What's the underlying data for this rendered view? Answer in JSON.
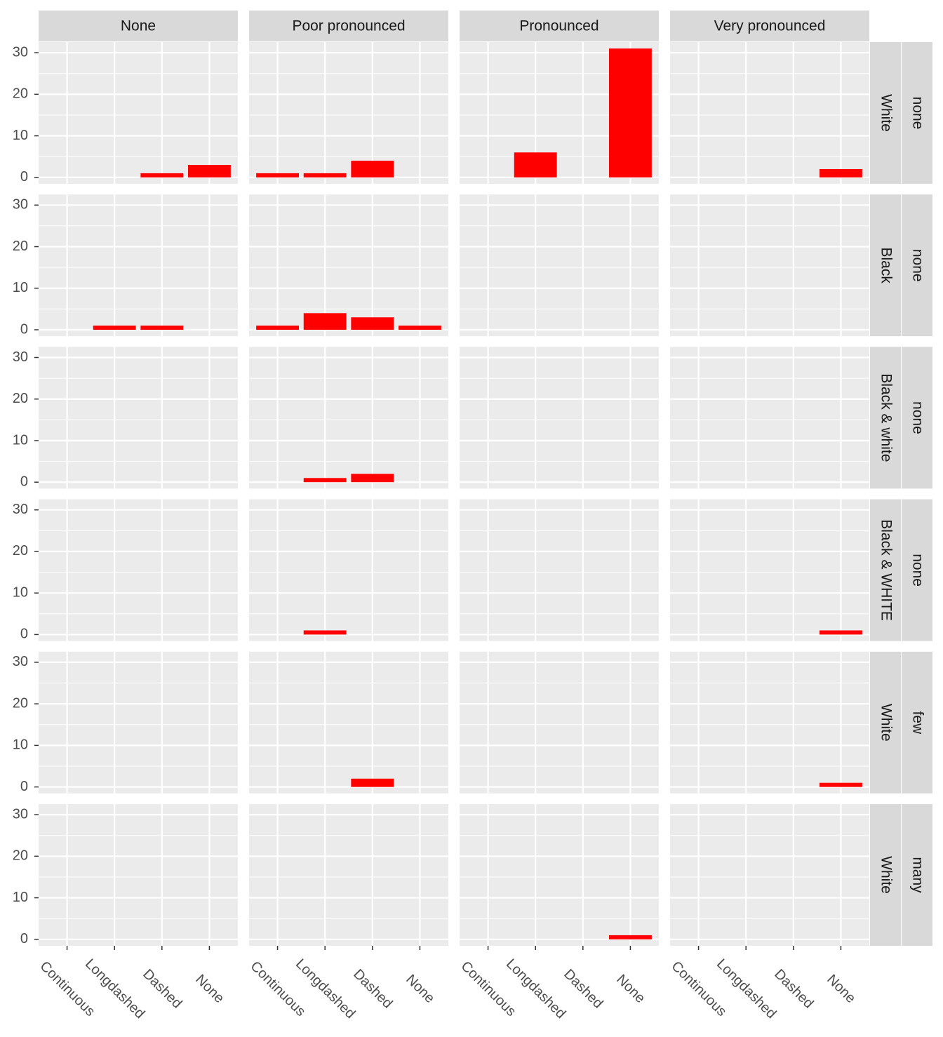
{
  "chart_data": {
    "type": "bar",
    "column_facets": [
      "None",
      "Poor pronounced",
      "Pronounced",
      "Very pronounced"
    ],
    "row_facets": [
      [
        "White",
        "none"
      ],
      [
        "Black",
        "none"
      ],
      [
        "Black & white",
        "none"
      ],
      [
        "Black & WHITE",
        "none"
      ],
      [
        "White",
        "few"
      ],
      [
        "White",
        "many"
      ]
    ],
    "categories": [
      "Continuous",
      "Longdashed",
      "Dashed",
      "None"
    ],
    "values": [
      [
        [
          null,
          null,
          1,
          3
        ],
        [
          1,
          1,
          4,
          null
        ],
        [
          null,
          6,
          null,
          31
        ],
        [
          null,
          null,
          null,
          2
        ]
      ],
      [
        [
          null,
          1,
          1,
          null
        ],
        [
          1,
          4,
          3,
          1
        ],
        [
          null,
          null,
          null,
          null
        ],
        [
          null,
          null,
          null,
          null
        ]
      ],
      [
        [
          null,
          null,
          null,
          null
        ],
        [
          null,
          1,
          2,
          null
        ],
        [
          null,
          null,
          null,
          null
        ],
        [
          null,
          null,
          null,
          null
        ]
      ],
      [
        [
          null,
          null,
          null,
          null
        ],
        [
          null,
          1,
          null,
          null
        ],
        [
          null,
          null,
          null,
          null
        ],
        [
          null,
          null,
          null,
          1
        ]
      ],
      [
        [
          null,
          null,
          null,
          null
        ],
        [
          null,
          null,
          2,
          null
        ],
        [
          null,
          null,
          null,
          null
        ],
        [
          null,
          null,
          null,
          1
        ]
      ],
      [
        [
          null,
          null,
          null,
          null
        ],
        [
          null,
          null,
          null,
          null
        ],
        [
          null,
          null,
          null,
          1
        ],
        [
          null,
          null,
          null,
          null
        ]
      ]
    ],
    "color": "#ff0000",
    "ylim": [
      -1.55,
      32.55
    ],
    "yticks": [
      0,
      10,
      20,
      30
    ],
    "y_minor_ticks": [
      5,
      15,
      25
    ],
    "grid": true
  }
}
